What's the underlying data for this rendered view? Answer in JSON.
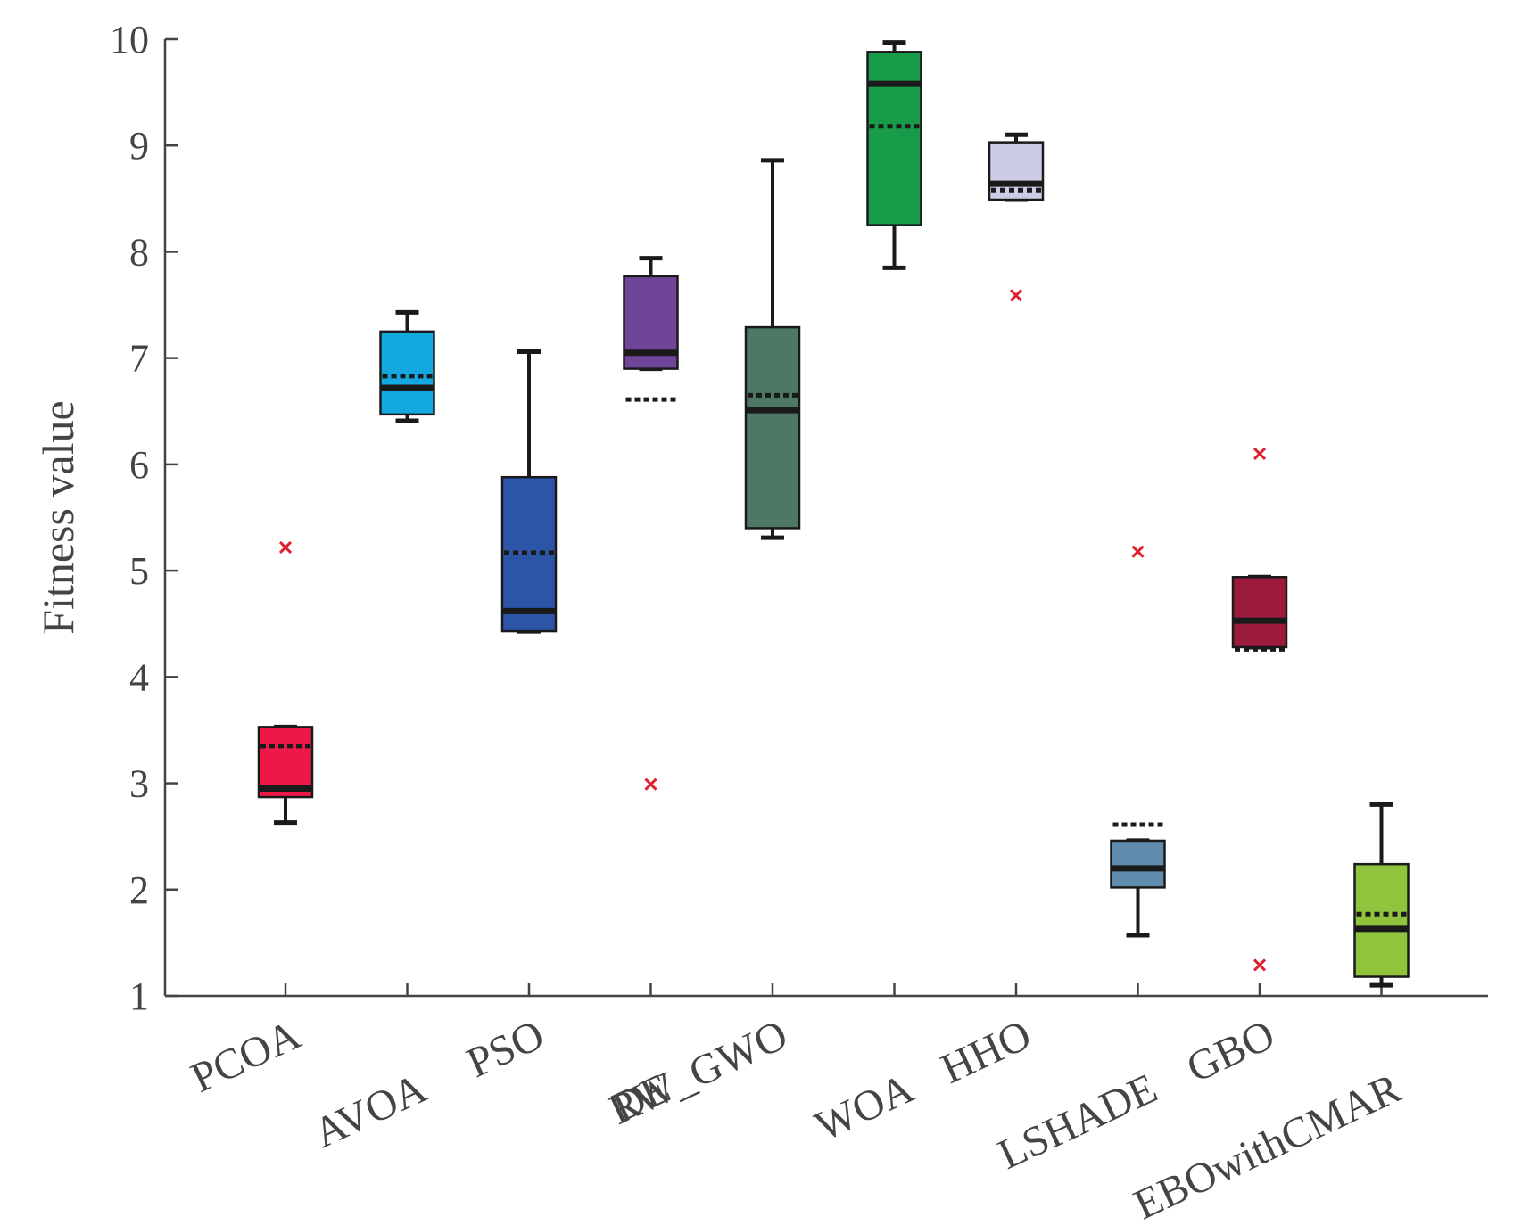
{
  "chart_data": {
    "type": "boxplot",
    "title": "",
    "xlabel": "",
    "ylabel": "Fitness value",
    "ylim": [
      1,
      10
    ],
    "yticks": [
      1,
      2,
      3,
      4,
      5,
      6,
      7,
      8,
      9,
      10
    ],
    "grid": false,
    "series": [
      {
        "name": "PCOA",
        "color": "#ee1848",
        "whisker_low": 2.63,
        "q1": 2.87,
        "median": 2.95,
        "q3": 3.53,
        "whisker_high": 3.53,
        "mean": 3.35,
        "outliers": [
          5.22
        ]
      },
      {
        "name": "AVOA",
        "color": "#14a8e0",
        "whisker_low": 6.41,
        "q1": 6.47,
        "median": 6.72,
        "q3": 7.25,
        "whisker_high": 7.43,
        "mean": 6.83,
        "outliers": []
      },
      {
        "name": "PSO",
        "color": "#2c55a8",
        "whisker_low": 4.43,
        "q1": 4.43,
        "median": 4.62,
        "q3": 5.88,
        "whisker_high": 7.06,
        "mean": 5.17,
        "outliers": []
      },
      {
        "name": "DE",
        "color": "#6f4599",
        "whisker_low": 6.9,
        "q1": 6.9,
        "median": 7.05,
        "q3": 7.77,
        "whisker_high": 7.94,
        "mean": 6.61,
        "outliers": [
          2.99
        ]
      },
      {
        "name": "RW_GWO",
        "color": "#4d7863",
        "whisker_low": 5.31,
        "q1": 5.4,
        "median": 6.51,
        "q3": 7.29,
        "whisker_high": 8.86,
        "mean": 6.65,
        "outliers": []
      },
      {
        "name": "WOA",
        "color": "#199c49",
        "whisker_low": 7.85,
        "q1": 8.25,
        "median": 9.58,
        "q3": 9.88,
        "whisker_high": 9.97,
        "mean": 9.18,
        "outliers": []
      },
      {
        "name": "HHO",
        "color": "#cccce6",
        "whisker_low": 8.49,
        "q1": 8.49,
        "median": 8.64,
        "q3": 9.03,
        "whisker_high": 9.1,
        "mean": 8.58,
        "outliers": [
          7.59
        ]
      },
      {
        "name": "LSHADE",
        "color": "#5f8cad",
        "whisker_low": 1.57,
        "q1": 2.02,
        "median": 2.2,
        "q3": 2.46,
        "whisker_high": 2.46,
        "mean": 2.61,
        "outliers": [
          5.18
        ]
      },
      {
        "name": "GBO",
        "color": "#9c1b3d",
        "whisker_low": 4.28,
        "q1": 4.28,
        "median": 4.53,
        "q3": 4.94,
        "whisker_high": 4.94,
        "mean": 4.26,
        "outliers": [
          6.1,
          1.29
        ]
      },
      {
        "name": "EBOwithCMAR",
        "color": "#90c43c",
        "whisker_low": 1.1,
        "q1": 1.18,
        "median": 1.63,
        "q3": 2.24,
        "whisker_high": 2.8,
        "mean": 1.77,
        "outliers": []
      }
    ]
  }
}
